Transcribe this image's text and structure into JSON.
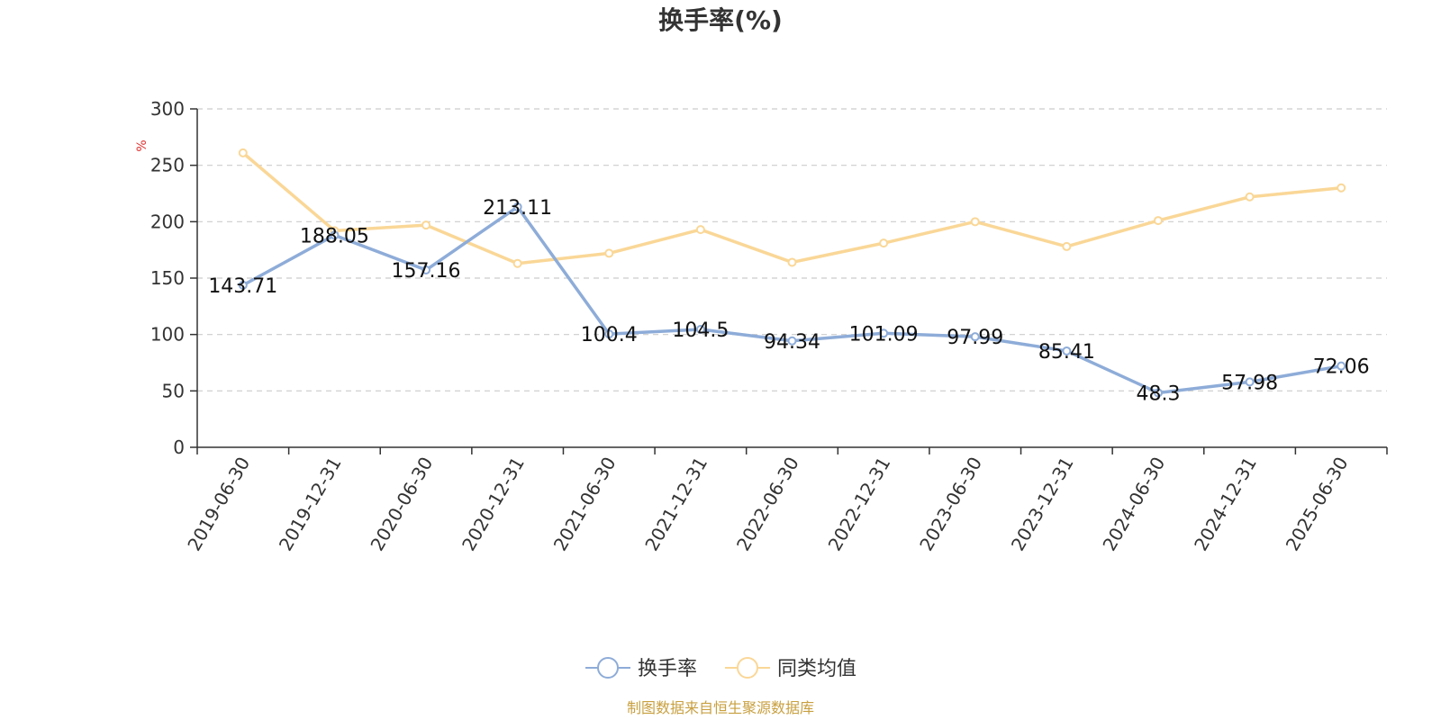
{
  "chart_data": {
    "type": "line",
    "title": "换手率(%)",
    "ylabel": "%",
    "ylim": [
      0,
      300
    ],
    "yticks": [
      0,
      50,
      100,
      150,
      200,
      250,
      300
    ],
    "grid": true,
    "legend_position": "bottom-center",
    "categories": [
      "2019-06-30",
      "2019-12-31",
      "2020-06-30",
      "2020-12-31",
      "2021-06-30",
      "2021-12-31",
      "2022-06-30",
      "2022-12-31",
      "2023-06-30",
      "2023-12-31",
      "2024-06-30",
      "2024-12-31",
      "2025-06-30"
    ],
    "series": [
      {
        "name": "换手率",
        "color": "#8eacd8",
        "show_labels": true,
        "values": [
          143.71,
          188.05,
          157.16,
          213.11,
          100.4,
          104.5,
          94.34,
          101.09,
          97.99,
          85.41,
          48.3,
          57.98,
          72.06
        ]
      },
      {
        "name": "同类均值",
        "color": "#fad797",
        "show_labels": false,
        "values": [
          261,
          192,
          197,
          163,
          172,
          193,
          164,
          181,
          200,
          178,
          201,
          222,
          230
        ]
      }
    ],
    "source": "制图数据来自恒生聚源数据库",
    "colors": {
      "axis": "#333333",
      "grid": "#cccccc",
      "unit": "#e03030",
      "source": "#c8a040"
    }
  }
}
